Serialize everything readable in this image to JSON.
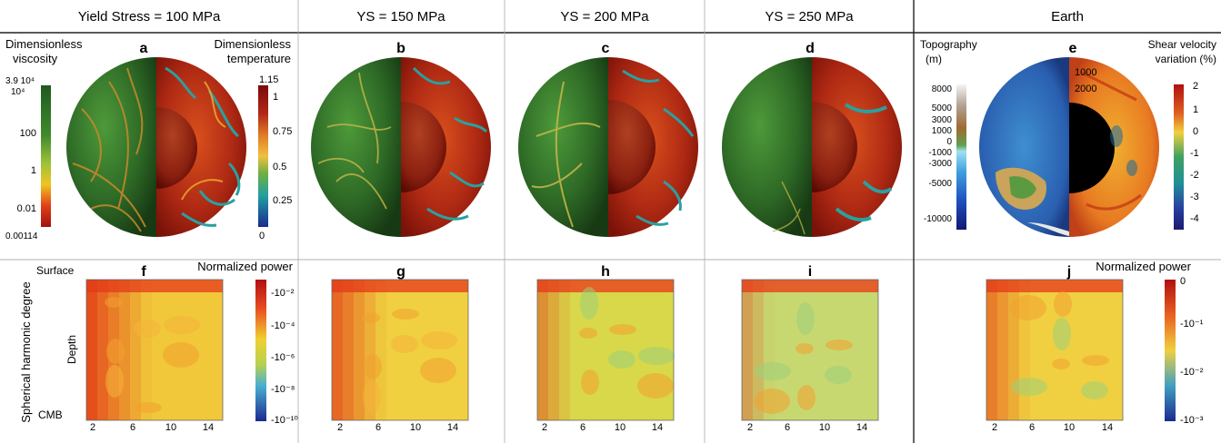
{
  "headers": [
    "Yield Stress = 100 MPa",
    "YS = 150 MPa",
    "YS = 200 MPa",
    "YS = 250 MPa",
    "Earth"
  ],
  "panel_letters_top": [
    "a",
    "b",
    "c",
    "d",
    "e"
  ],
  "panel_letters_bottom": [
    "f",
    "g",
    "h",
    "i",
    "j"
  ],
  "viscosity_colorbar": {
    "title_line1": "Dimensionless",
    "title_line2": "viscosity",
    "ticks": [
      "3.9 10⁴",
      "10⁴",
      "100",
      "1",
      "0.01",
      "0.00114"
    ]
  },
  "temperature_colorbar": {
    "title_line1": "Dimensionless",
    "title_line2": "temperature",
    "ticks": [
      "1.15",
      "1",
      "0.75",
      "0.5",
      "0.25",
      "0"
    ]
  },
  "topography_colorbar": {
    "title_line1": "Topography",
    "title_line2": "(m)",
    "ticks": [
      "8000",
      "5000",
      "3000",
      "1000",
      "0",
      "-1000",
      "-3000",
      "-5000",
      "-10000"
    ]
  },
  "shear_velocity_colorbar": {
    "title_line1": "Shear velocity",
    "title_line2": "variation (%)",
    "ticks": [
      "2",
      "1",
      "0",
      "-1",
      "-2",
      "-3",
      "-4"
    ]
  },
  "earth_depth_labels": [
    "1000",
    "2000"
  ],
  "power_colorbar_sim": {
    "title": "Normalized power",
    "ticks": [
      "-10⁻²",
      "-10⁻⁴",
      "-10⁻⁶",
      "-10⁻⁸",
      "-10⁻¹⁰"
    ]
  },
  "power_colorbar_earth": {
    "title": "Normalized power",
    "ticks": [
      "0",
      "-10⁻¹",
      "-10⁻²",
      "-10⁻³"
    ]
  },
  "spectrum_axes": {
    "y_top": "Surface",
    "y_bottom": "CMB",
    "y_mid": "Depth",
    "x_title": "Spherical harmonic degree",
    "x_ticks": [
      "2",
      "6",
      "10",
      "14"
    ]
  },
  "colors": {
    "viscosity_gradient": [
      "#1f5a20",
      "#3f8a2a",
      "#8fba3a",
      "#f0c420",
      "#e0401a",
      "#a01010"
    ],
    "temperature_gradient": [
      "#8a0e0e",
      "#c8401e",
      "#e88a2a",
      "#8ac040",
      "#2aa0a0",
      "#2030a0"
    ],
    "shear_gradient": [
      "#b01010",
      "#e86020",
      "#f0d040",
      "#40a060",
      "#208090",
      "#202a80"
    ],
    "power_gradient": [
      "#b01010",
      "#e84a20",
      "#f0d030",
      "#48b0d0",
      "#2030a0"
    ]
  }
}
